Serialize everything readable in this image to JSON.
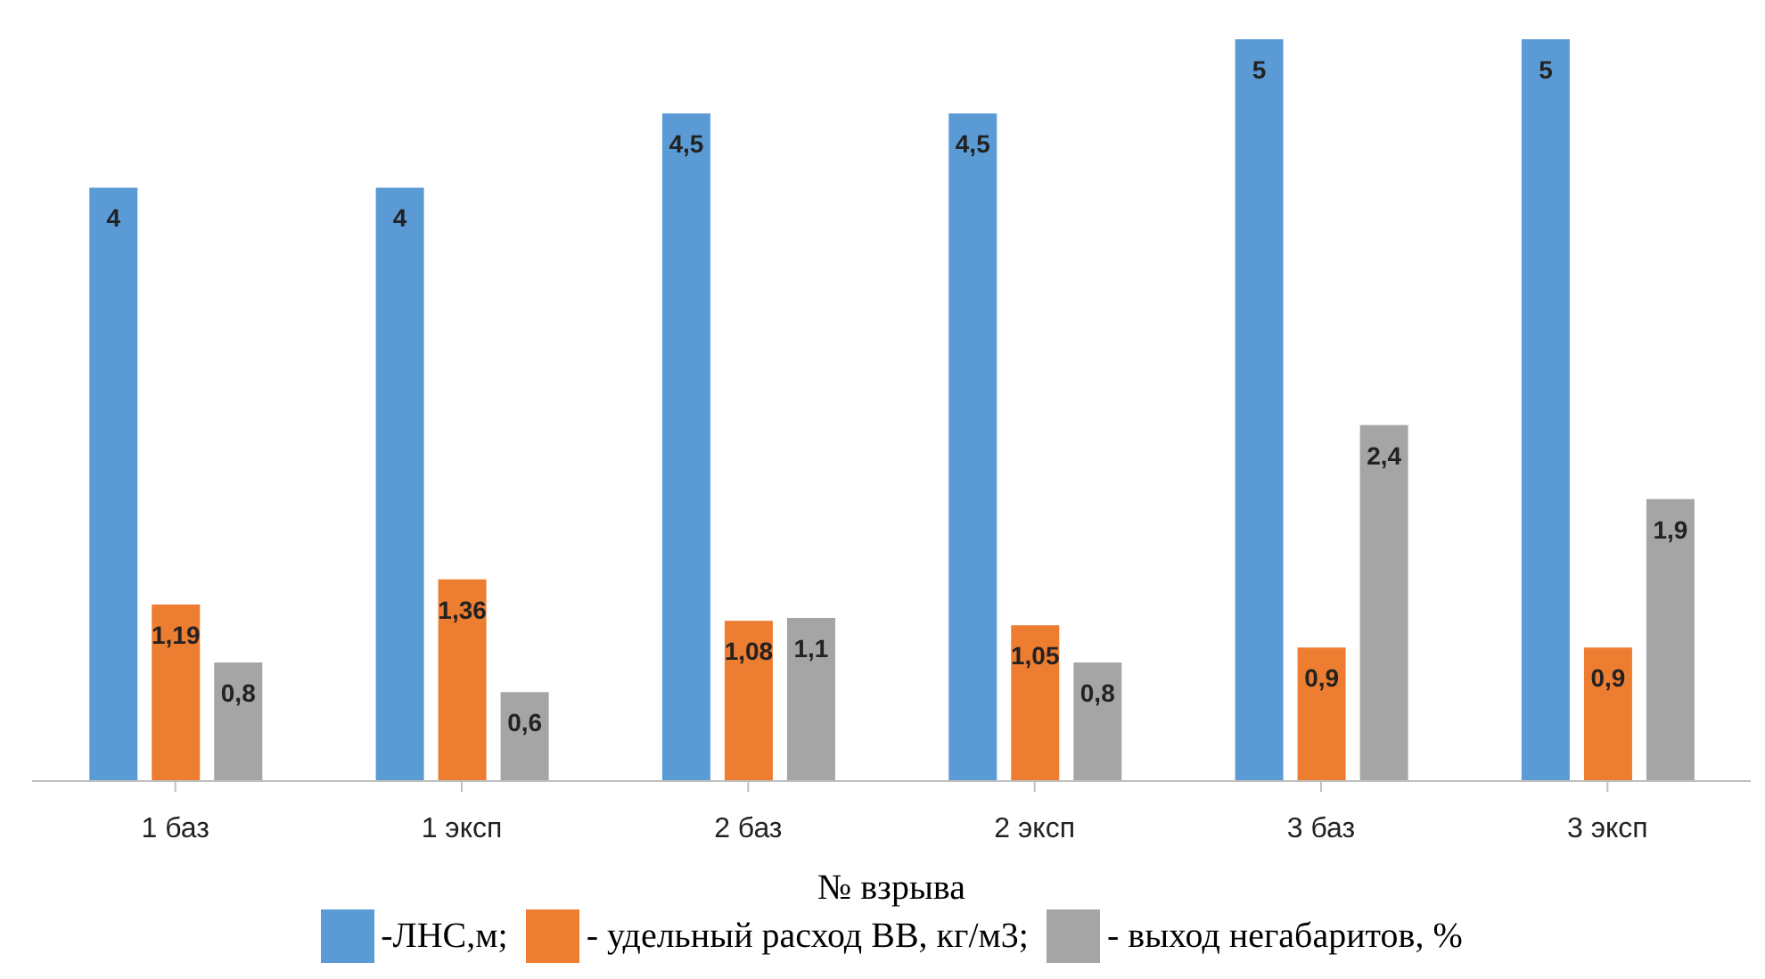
{
  "chart_data": {
    "type": "bar",
    "xlabel": "№ взрыва",
    "categories": [
      "1 баз",
      "1 эксп",
      "2 баз",
      "2 эксп",
      "3 баз",
      "3 эксп"
    ],
    "series": [
      {
        "name": "-ЛНС,м;",
        "color": "#5b9bd5",
        "values": [
          4,
          4,
          4.5,
          4.5,
          5,
          5
        ],
        "value_labels": [
          "4",
          "4",
          "4,5",
          "4,5",
          "5",
          "5"
        ]
      },
      {
        "name": "- удельный расход ВВ, кг/м3;",
        "color": "#ed7d31",
        "values": [
          1.19,
          1.36,
          1.08,
          1.05,
          0.9,
          0.9
        ],
        "value_labels": [
          "1,19",
          "1,36",
          "1,08",
          "1,05",
          "0,9",
          "0,9"
        ]
      },
      {
        "name": "- выход негабаритов, %",
        "color": "#a5a5a5",
        "values": [
          0.8,
          0.6,
          1.1,
          0.8,
          2.4,
          1.9
        ],
        "value_labels": [
          "0,8",
          "0,6",
          "1,1",
          "0,8",
          "2,4",
          "1,9"
        ]
      }
    ],
    "legend": "bottom",
    "grid": false
  }
}
